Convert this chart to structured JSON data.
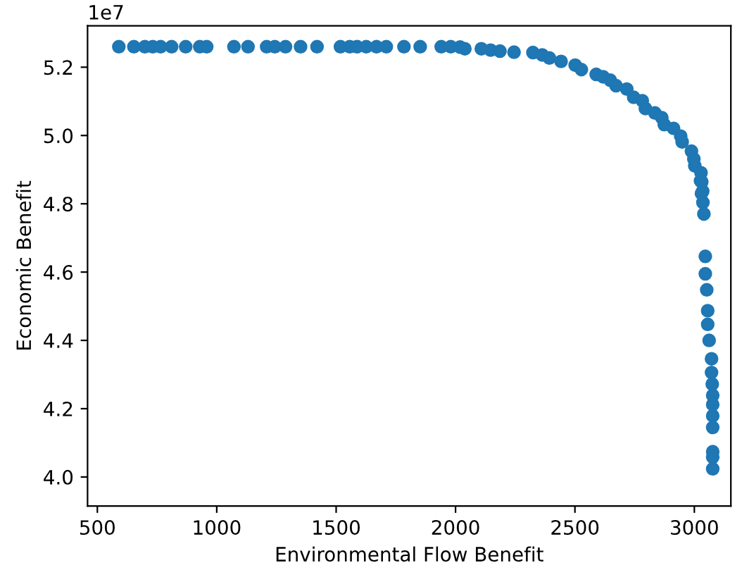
{
  "chart_data": {
    "type": "scatter",
    "xlabel": "Environmental Flow Benefit",
    "ylabel": "Economic Benefit",
    "annotations": [
      "1e7"
    ],
    "xlim": [
      459,
      3153
    ],
    "ylim": [
      3.915,
      5.321
    ],
    "xticks": [
      500,
      1000,
      1500,
      2000,
      2500,
      3000
    ],
    "yticks": [
      {
        "value": 4.0,
        "label": "4.0"
      },
      {
        "value": 4.2,
        "label": "4.2"
      },
      {
        "value": 4.4,
        "label": "4.4"
      },
      {
        "value": 4.6,
        "label": "4.6"
      },
      {
        "value": 4.8,
        "label": "4.8"
      },
      {
        "value": 5.0,
        "label": "5.0"
      },
      {
        "value": 5.2,
        "label": "5.2"
      }
    ],
    "grid": false,
    "legend": false,
    "marker": "circle",
    "series": [
      {
        "color": "#1f77b4",
        "x": [
          590,
          653,
          699,
          732,
          765,
          811,
          870,
          929,
          958,
          1072,
          1131,
          1209,
          1243,
          1288,
          1351,
          1420,
          1518,
          1557,
          1587,
          1626,
          1669,
          1710,
          1784,
          1852,
          1940,
          1980,
          2019,
          2039,
          2108,
          2147,
          2186,
          2245,
          2324,
          2363,
          2393,
          2442,
          2501,
          2527,
          2589,
          2618,
          2648,
          2672,
          2717,
          2746,
          2782,
          2795,
          2835,
          2864,
          2874,
          2913,
          2943,
          2949,
          2988,
          2998,
          3002,
          3028,
          3031,
          3035,
          3026,
          3030,
          3036,
          3040,
          3046,
          3046,
          3052,
          3056,
          3056,
          3062,
          3072,
          3072,
          3075,
          3077,
          3077,
          3077,
          3077,
          3077,
          3077,
          3077
        ],
        "values": [
          5.26,
          5.26,
          5.26,
          5.26,
          5.26,
          5.26,
          5.26,
          5.26,
          5.26,
          5.26,
          5.26,
          5.26,
          5.26,
          5.26,
          5.26,
          5.26,
          5.26,
          5.26,
          5.26,
          5.26,
          5.26,
          5.26,
          5.26,
          5.26,
          5.26,
          5.26,
          5.259,
          5.254,
          5.254,
          5.25,
          5.247,
          5.244,
          5.243,
          5.236,
          5.227,
          5.217,
          5.206,
          5.193,
          5.179,
          5.172,
          5.162,
          5.146,
          5.136,
          5.112,
          5.102,
          5.079,
          5.066,
          5.052,
          5.032,
          5.021,
          4.998,
          4.981,
          4.954,
          4.931,
          4.911,
          4.891,
          4.864,
          4.837,
          4.867,
          4.83,
          4.804,
          4.77,
          4.646,
          4.595,
          4.548,
          4.487,
          4.447,
          4.4,
          4.346,
          4.306,
          4.272,
          4.239,
          4.212,
          4.179,
          4.145,
          4.074,
          4.058,
          4.024
        ]
      }
    ]
  }
}
